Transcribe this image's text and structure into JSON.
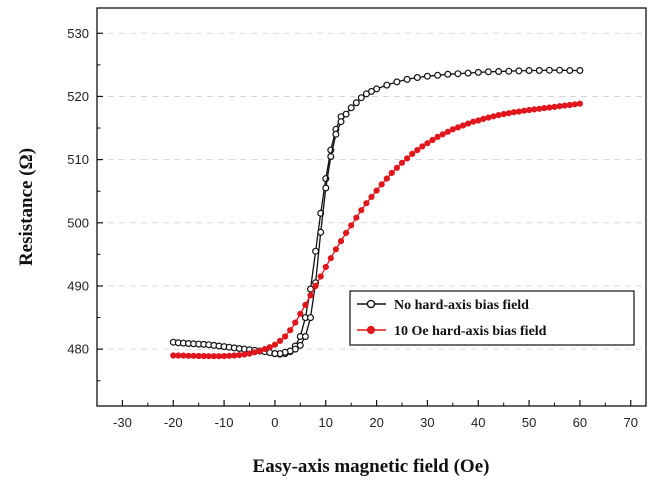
{
  "chart_data": {
    "type": "scatter",
    "xlabel": "Easy-axis magnetic field (Oe)",
    "ylabel": "Resistance (Ω)",
    "xlim": [
      -35,
      73
    ],
    "ylim": [
      471,
      534
    ],
    "x_ticks": [
      -30,
      -20,
      -10,
      0,
      10,
      20,
      30,
      40,
      50,
      60,
      70
    ],
    "y_ticks": [
      480,
      490,
      500,
      510,
      520,
      530
    ],
    "grid": true,
    "legend_position": "lower-right",
    "series": [
      {
        "name": "No hard-axis bias field",
        "color": "#111111",
        "marker": "open-circle",
        "points_up": [
          [
            -20,
            481.1
          ],
          [
            -19,
            481.0
          ],
          [
            -18,
            480.95
          ],
          [
            -17,
            480.9
          ],
          [
            -16,
            480.85
          ],
          [
            -15,
            480.8
          ],
          [
            -14,
            480.75
          ],
          [
            -13,
            480.7
          ],
          [
            -12,
            480.6
          ],
          [
            -11,
            480.5
          ],
          [
            -10,
            480.4
          ],
          [
            -9,
            480.3
          ],
          [
            -8,
            480.2
          ],
          [
            -7,
            480.1
          ],
          [
            -6,
            480.0
          ],
          [
            -5,
            479.9
          ],
          [
            -4,
            479.8
          ],
          [
            -3,
            479.7
          ],
          [
            -2,
            479.6
          ],
          [
            -1,
            479.45
          ],
          [
            0,
            479.3
          ],
          [
            1,
            479.2
          ],
          [
            2,
            479.3
          ],
          [
            3,
            479.6
          ],
          [
            4,
            480.5
          ],
          [
            5,
            482.0
          ],
          [
            6,
            485.0
          ],
          [
            7,
            489.5
          ],
          [
            8,
            495.5
          ],
          [
            9,
            501.5
          ],
          [
            10,
            507.0
          ],
          [
            11,
            511.5
          ],
          [
            12,
            514.8
          ],
          [
            13,
            516.8
          ]
        ],
        "points_down": [
          [
            60,
            524.1
          ],
          [
            58,
            524.1
          ],
          [
            56,
            524.15
          ],
          [
            54,
            524.15
          ],
          [
            52,
            524.1
          ],
          [
            50,
            524.1
          ],
          [
            48,
            524.05
          ],
          [
            46,
            524.0
          ],
          [
            44,
            523.95
          ],
          [
            42,
            523.9
          ],
          [
            40,
            523.8
          ],
          [
            38,
            523.7
          ],
          [
            36,
            523.6
          ],
          [
            34,
            523.5
          ],
          [
            32,
            523.35
          ],
          [
            30,
            523.2
          ],
          [
            28,
            523.0
          ],
          [
            26,
            522.7
          ],
          [
            24,
            522.3
          ],
          [
            22,
            521.8
          ],
          [
            20,
            521.2
          ],
          [
            19,
            520.8
          ],
          [
            18,
            520.4
          ],
          [
            17,
            519.8
          ],
          [
            16,
            519.0
          ],
          [
            15,
            518.2
          ],
          [
            14,
            517.2
          ],
          [
            13,
            516.0
          ],
          [
            12,
            514.0
          ],
          [
            11,
            510.5
          ],
          [
            10,
            505.5
          ],
          [
            9,
            498.5
          ],
          [
            8,
            490.5
          ],
          [
            7,
            485.0
          ],
          [
            6,
            482.0
          ],
          [
            5,
            480.6
          ],
          [
            4,
            480.0
          ],
          [
            3,
            479.7
          ],
          [
            2,
            479.5
          ],
          [
            1,
            479.3
          ],
          [
            0,
            479.3
          ]
        ]
      },
      {
        "name": "10 Oe hard-axis bias field",
        "color": "#e0161c",
        "marker": "filled-circle",
        "points": [
          [
            -20,
            479.0
          ],
          [
            -19,
            479.0
          ],
          [
            -18,
            478.98
          ],
          [
            -17,
            478.95
          ],
          [
            -16,
            478.95
          ],
          [
            -15,
            478.92
          ],
          [
            -14,
            478.9
          ],
          [
            -13,
            478.88
          ],
          [
            -12,
            478.88
          ],
          [
            -11,
            478.88
          ],
          [
            -10,
            478.9
          ],
          [
            -9,
            478.95
          ],
          [
            -8,
            479.0
          ],
          [
            -7,
            479.05
          ],
          [
            -6,
            479.15
          ],
          [
            -5,
            479.3
          ],
          [
            -4,
            479.5
          ],
          [
            -3,
            479.7
          ],
          [
            -2,
            480.0
          ],
          [
            -1,
            480.3
          ],
          [
            0,
            480.7
          ],
          [
            1,
            481.3
          ],
          [
            2,
            482.0
          ],
          [
            3,
            483.0
          ],
          [
            4,
            484.2
          ],
          [
            5,
            485.6
          ],
          [
            6,
            487.0
          ],
          [
            7,
            488.5
          ],
          [
            8,
            490.0
          ],
          [
            9,
            491.5
          ],
          [
            10,
            493.0
          ],
          [
            11,
            494.4
          ],
          [
            12,
            495.8
          ],
          [
            13,
            497.1
          ],
          [
            14,
            498.4
          ],
          [
            15,
            499.6
          ],
          [
            16,
            500.8
          ],
          [
            17,
            502.0
          ],
          [
            18,
            503.1
          ],
          [
            19,
            504.1
          ],
          [
            20,
            505.1
          ],
          [
            21,
            506.1
          ],
          [
            22,
            507.0
          ],
          [
            23,
            507.9
          ],
          [
            24,
            508.7
          ],
          [
            25,
            509.5
          ],
          [
            26,
            510.2
          ],
          [
            27,
            510.9
          ],
          [
            28,
            511.5
          ],
          [
            29,
            512.1
          ],
          [
            30,
            512.6
          ],
          [
            31,
            513.1
          ],
          [
            32,
            513.6
          ],
          [
            33,
            514.0
          ],
          [
            34,
            514.4
          ],
          [
            35,
            514.8
          ],
          [
            36,
            515.1
          ],
          [
            37,
            515.4
          ],
          [
            38,
            515.7
          ],
          [
            39,
            516.0
          ],
          [
            40,
            516.2
          ],
          [
            41,
            516.45
          ],
          [
            42,
            516.65
          ],
          [
            43,
            516.85
          ],
          [
            44,
            517.05
          ],
          [
            45,
            517.2
          ],
          [
            46,
            517.35
          ],
          [
            47,
            517.5
          ],
          [
            48,
            517.6
          ],
          [
            49,
            517.75
          ],
          [
            50,
            517.85
          ],
          [
            51,
            517.95
          ],
          [
            52,
            518.05
          ],
          [
            53,
            518.15
          ],
          [
            54,
            518.25
          ],
          [
            55,
            518.35
          ],
          [
            56,
            518.45
          ],
          [
            57,
            518.55
          ],
          [
            58,
            518.65
          ],
          [
            59,
            518.75
          ],
          [
            60,
            518.85
          ]
        ]
      }
    ]
  }
}
